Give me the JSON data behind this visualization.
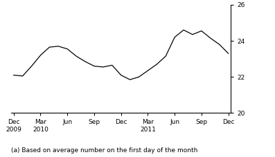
{
  "footnote": "(a) Based on average number on the first day of the month",
  "ylabel": "%",
  "ylim": [
    20,
    26
  ],
  "yticks": [
    20,
    22,
    24,
    26
  ],
  "xlim": [
    -0.3,
    24.3
  ],
  "line_color": "#000000",
  "line_width": 0.9,
  "background_color": "#ffffff",
  "tick_positions": [
    0,
    3,
    6,
    9,
    12,
    15,
    18,
    21,
    24
  ],
  "tick_labels": [
    "Dec\n2009",
    "Mar\n2010",
    "Jun",
    "Sep",
    "Dec",
    "Mar\n2011",
    "Jun",
    "Sep",
    "Dec"
  ],
  "x": [
    0,
    1,
    2,
    3,
    4,
    5,
    6,
    7,
    8,
    9,
    10,
    11,
    12,
    13,
    14,
    15,
    16,
    17,
    18,
    19,
    20,
    21,
    22,
    23,
    24
  ],
  "y": [
    22.1,
    22.05,
    22.6,
    23.2,
    23.65,
    23.7,
    23.55,
    23.15,
    22.85,
    22.6,
    22.55,
    22.65,
    22.1,
    21.85,
    22.0,
    22.35,
    22.7,
    23.15,
    24.2,
    24.6,
    24.35,
    24.55,
    24.15,
    23.8,
    23.3
  ],
  "fontsize_ticks": 6.5,
  "fontsize_footnote": 6.5,
  "fontsize_ylabel": 7
}
